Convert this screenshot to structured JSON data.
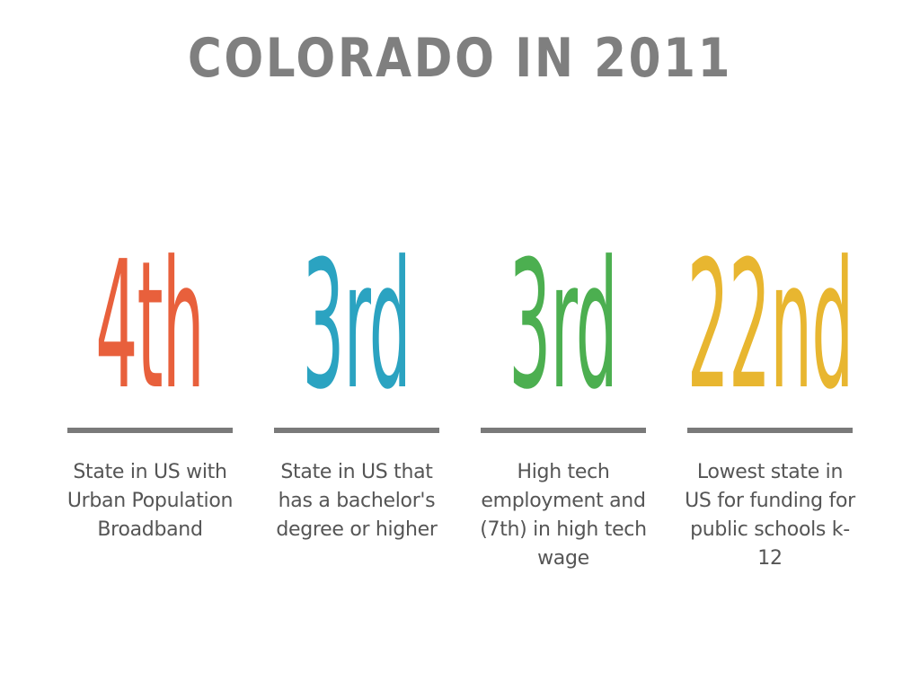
{
  "title": "COLORADO IN 2011",
  "stats": [
    {
      "rank": "4th",
      "color": "#e8603c",
      "description": "State in US with Urban Population Broadband"
    },
    {
      "rank": "3rd",
      "color": "#2ba3c1",
      "description": "State in US that has a bachelor's degree or higher"
    },
    {
      "rank": "3rd",
      "color": "#4caf50",
      "description": "High tech employment and (7th) in high tech wage"
    },
    {
      "rank": "22nd",
      "color": "#e8b630",
      "description": "Lowest state in US for funding for public schools k-12"
    }
  ],
  "colors": {
    "title": "#7f7f7f",
    "divider": "#7a7a7a",
    "description": "#555555"
  }
}
